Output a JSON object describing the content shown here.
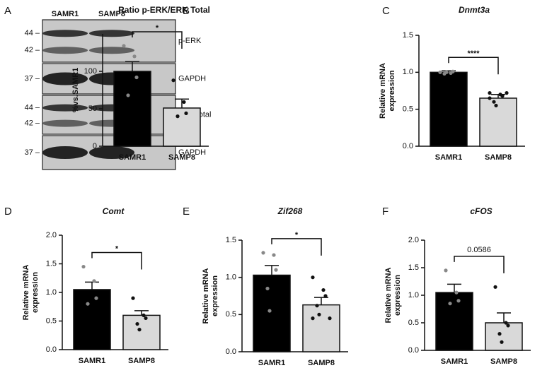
{
  "blot": {
    "panel": "A",
    "lanes": [
      "SAMR1",
      "SAMP8"
    ],
    "strips": [
      {
        "label": "p-ERK",
        "markers": [
          "44 –",
          "42 –"
        ]
      },
      {
        "label": "GAPDH",
        "markers": [
          "37 –"
        ]
      },
      {
        "label": "ERK total",
        "markers": [
          "44 –",
          "42 –"
        ]
      },
      {
        "label": "GAPDH",
        "markers": [
          "37 –"
        ]
      }
    ]
  },
  "chart_data": [
    {
      "type": "bar",
      "panel": "B",
      "title": "Ratio p-ERK/ERK Total",
      "italic": false,
      "ylabel": [
        "%vs.SAMR1"
      ],
      "categories": [
        "SAMR1",
        "SAMP8"
      ],
      "colors": [
        "#000000",
        "#d9d9d9"
      ],
      "values": [
        100,
        51
      ],
      "errors": [
        13,
        12
      ],
      "points": [
        [
          134,
          120,
          92,
          68
        ],
        [
          88,
          59,
          44,
          40
        ]
      ],
      "significance": "*",
      "significance_color": "#111111",
      "ylim": [
        0,
        150
      ],
      "yticks": [
        0,
        50,
        100
      ]
    },
    {
      "type": "bar",
      "panel": "C",
      "title": "Dnmt3a",
      "italic": true,
      "ylabel": [
        "Relative mRNA",
        "expression"
      ],
      "categories": [
        "SAMR1",
        "SAMP8"
      ],
      "colors": [
        "#000000",
        "#d9d9d9"
      ],
      "values": [
        1.0,
        0.65
      ],
      "errors": [
        0.02,
        0.05
      ],
      "points": [
        [
          1.0,
          0.99,
          1.01,
          0.98,
          1.0
        ],
        [
          0.72,
          0.7,
          0.68,
          0.6,
          0.55,
          0.72,
          0.65
        ]
      ],
      "significance": "****",
      "significance_color": "#111111",
      "ylim": [
        0,
        1.5
      ],
      "yticks": [
        {
          "value": 0,
          "label": "0.0"
        },
        {
          "value": 0.5,
          "label": "0.5"
        },
        {
          "value": 1,
          "label": "1.0"
        },
        {
          "value": 1.5,
          "label": "1.5"
        }
      ]
    },
    {
      "type": "bar",
      "panel": "D",
      "title": "Comt",
      "italic": true,
      "ylabel": [
        "Relative mRNA",
        "expression"
      ],
      "categories": [
        "SAMR1",
        "SAMP8"
      ],
      "colors": [
        "#000000",
        "#d9d9d9"
      ],
      "values": [
        1.05,
        0.6
      ],
      "errors": [
        0.13,
        0.08
      ],
      "points": [
        [
          1.45,
          1.2,
          0.9,
          0.8
        ],
        [
          0.9,
          0.6,
          0.55,
          0.45,
          0.35
        ]
      ],
      "significance": "*",
      "significance_color": "#111111",
      "ylim": [
        0,
        2
      ],
      "yticks": [
        {
          "value": 0,
          "label": "0.0"
        },
        {
          "value": 0.5,
          "label": "0.5"
        },
        {
          "value": 1,
          "label": "1.0"
        },
        {
          "value": 1.5,
          "label": "1.5"
        },
        {
          "value": 2,
          "label": "2.0"
        }
      ]
    },
    {
      "type": "bar",
      "panel": "E",
      "title": "Zif268",
      "italic": true,
      "ylabel": [
        "Relative mRNA",
        "expression"
      ],
      "categories": [
        "SAMR1",
        "SAMP8"
      ],
      "colors": [
        "#000000",
        "#d9d9d9"
      ],
      "values": [
        1.03,
        0.63
      ],
      "errors": [
        0.13,
        0.1
      ],
      "points": [
        [
          1.33,
          1.3,
          1.1,
          0.85,
          0.55
        ],
        [
          1.0,
          0.83,
          0.75,
          0.62,
          0.5,
          0.45,
          0.45
        ]
      ],
      "significance": "*",
      "significance_color": "#111111",
      "ylim": [
        0,
        1.5
      ],
      "yticks": [
        {
          "value": 0,
          "label": "0.0"
        },
        {
          "value": 0.5,
          "label": "0.5"
        },
        {
          "value": 1,
          "label": "1.0"
        },
        {
          "value": 1.5,
          "label": "1.5"
        }
      ]
    },
    {
      "type": "bar",
      "panel": "F",
      "title": "cFOS",
      "italic": true,
      "ylabel": [
        "Relative mRNA",
        "expression"
      ],
      "categories": [
        "SAMR1",
        "SAMP8"
      ],
      "colors": [
        "#000000",
        "#d9d9d9"
      ],
      "values": [
        1.05,
        0.5
      ],
      "errors": [
        0.15,
        0.18
      ],
      "points": [
        [
          1.45,
          1.05,
          0.9,
          0.85
        ],
        [
          1.15,
          0.5,
          0.45,
          0.3,
          0.15
        ]
      ],
      "significance": "0.0586",
      "significance_color": "#555555",
      "ylim": [
        0,
        2
      ],
      "yticks": [
        {
          "value": 0,
          "label": "0.0"
        },
        {
          "value": 0.5,
          "label": "0.5"
        },
        {
          "value": 1,
          "label": "1.0"
        },
        {
          "value": 1.5,
          "label": "1.5"
        },
        {
          "value": 2,
          "label": "2.0"
        }
      ]
    }
  ]
}
